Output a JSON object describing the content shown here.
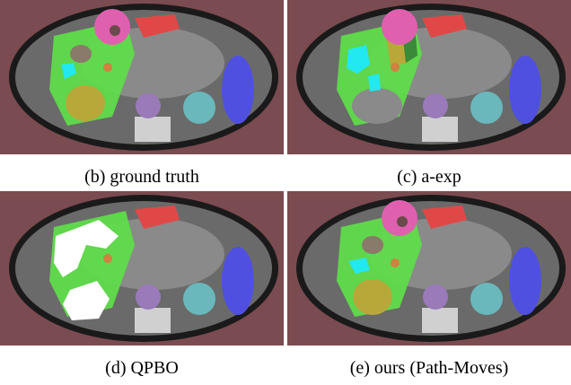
{
  "figure": {
    "panels": [
      {
        "id": "b",
        "caption": "(b) ground truth",
        "method": "ground-truth"
      },
      {
        "id": "c",
        "caption": "(c) a-exp",
        "method": "a-exp"
      },
      {
        "id": "d",
        "caption": "(d) QPBO",
        "method": "qpbo"
      },
      {
        "id": "e",
        "caption": "(e) ours (Path-Moves)",
        "method": "path-moves"
      }
    ]
  },
  "colors": {
    "background": "#7a4b50",
    "liver": "#5fdc4a",
    "tumor": "#b8a83a",
    "vessel": "#22e8f0",
    "spleen": "#5050e0",
    "kidney": "#6ab8bc",
    "aorta": "#9a7ab8",
    "stomach": "#e060b0",
    "pancreas": "#e04848",
    "unlabeled": "#ffffff"
  }
}
